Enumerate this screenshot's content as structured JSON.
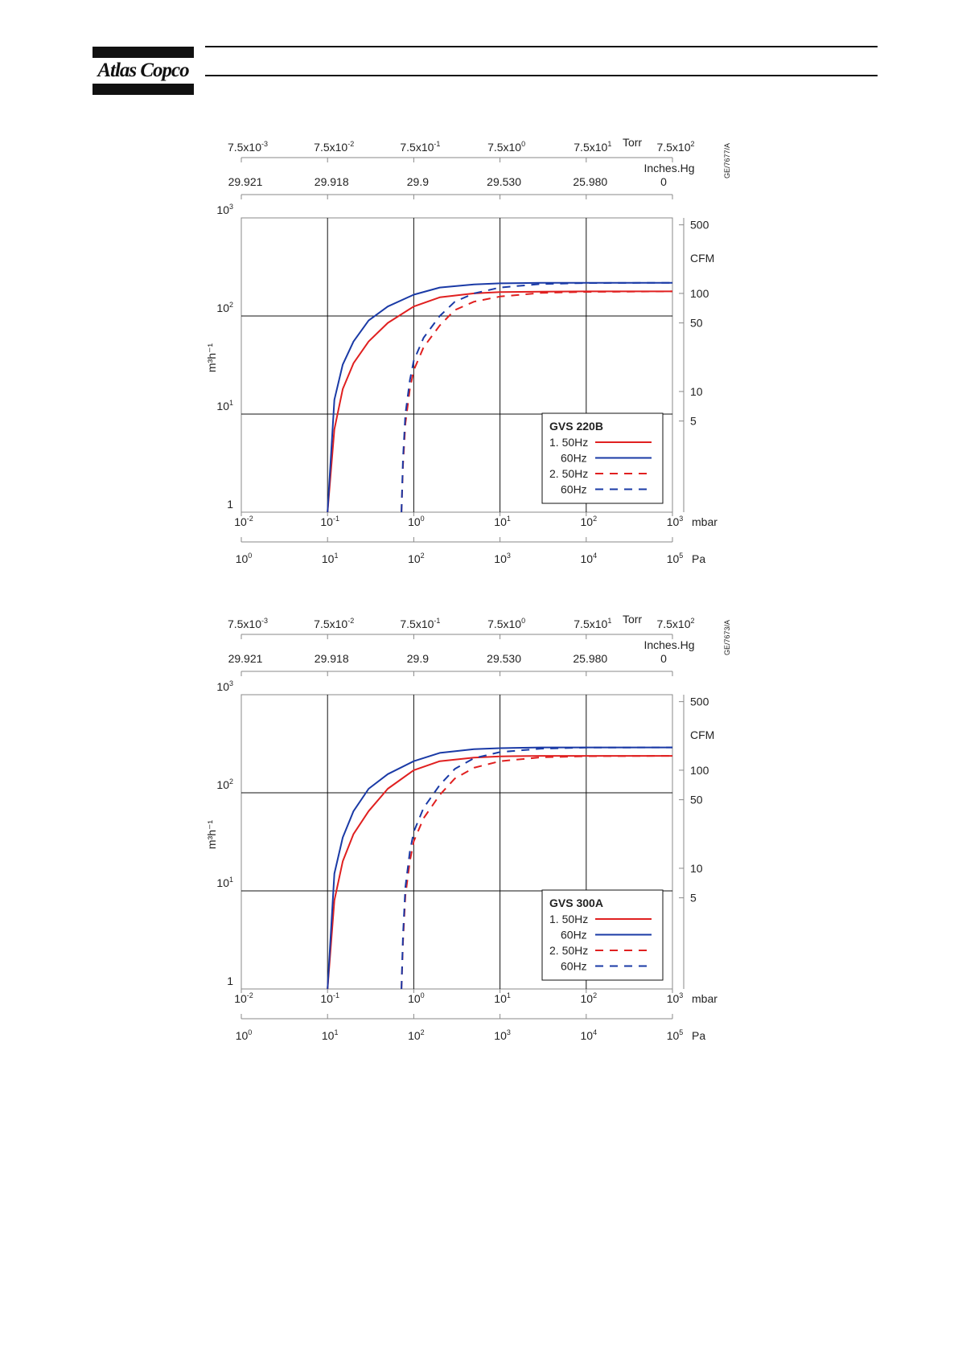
{
  "header": {
    "brand": "Atlas Copco"
  },
  "colors": {
    "line_50hz": "#e02020",
    "line_60hz": "#1a3aa6",
    "grid": "#111111",
    "frame": "#888888"
  },
  "chart_data": [
    {
      "type": "line",
      "legend_title": "GVS 220B",
      "drawing_code": "GE/7677/A",
      "ylabel": "m³h⁻¹",
      "xlabel": "mbar",
      "x_scale": "log",
      "y_scale": "log",
      "xlim": [
        0.01,
        1000
      ],
      "ylim": [
        1,
        1000
      ],
      "grid": true,
      "legend_position": "bottom-right",
      "y_ticks": [
        {
          "base": "1",
          "exp": ""
        },
        {
          "base": "10",
          "exp": "1"
        },
        {
          "base": "10",
          "exp": "2"
        },
        {
          "base": "10",
          "exp": "3"
        }
      ],
      "x_ticks": [
        {
          "base": "10",
          "exp": "-2"
        },
        {
          "base": "10",
          "exp": "-1"
        },
        {
          "base": "10",
          "exp": "0"
        },
        {
          "base": "10",
          "exp": "1"
        },
        {
          "base": "10",
          "exp": "2"
        },
        {
          "base": "10",
          "exp": "3"
        }
      ],
      "torr_unit": "Torr",
      "torr_ticks": [
        {
          "base": "7.5x10",
          "exp": "-3"
        },
        {
          "base": "7.5x10",
          "exp": "-2"
        },
        {
          "base": "7.5x10",
          "exp": "-1"
        },
        {
          "base": "7.5x10",
          "exp": "0"
        },
        {
          "base": "7.5x10",
          "exp": "1"
        },
        {
          "base": "7.5x10",
          "exp": "2"
        }
      ],
      "inhg_unit": "Inches.Hg",
      "inhg_ticks": [
        "29.921",
        "29.918",
        "29.9",
        "29.530",
        "25.980",
        "0"
      ],
      "pa_unit": "Pa",
      "pa_ticks": [
        {
          "base": "10",
          "exp": "0"
        },
        {
          "base": "10",
          "exp": "1"
        },
        {
          "base": "10",
          "exp": "2"
        },
        {
          "base": "10",
          "exp": "3"
        },
        {
          "base": "10",
          "exp": "4"
        },
        {
          "base": "10",
          "exp": "5"
        }
      ],
      "cfm_unit": "CFM",
      "cfm_ticks": [
        "500",
        "100",
        "50",
        "10",
        "5"
      ],
      "legend": {
        "row1_prefix": "1. 50Hz",
        "row2": "60Hz",
        "row3_prefix": "2. 50Hz",
        "row4": "60Hz"
      },
      "series": [
        {
          "name": "1. 50Hz",
          "color": "#e02020",
          "dash": false,
          "x": [
            0.1,
            0.12,
            0.15,
            0.2,
            0.3,
            0.5,
            1,
            2,
            5,
            10,
            30,
            100,
            1000
          ],
          "y": [
            1,
            7,
            18,
            33,
            55,
            85,
            125,
            155,
            170,
            175,
            177,
            178,
            178
          ]
        },
        {
          "name": "60Hz",
          "color": "#1a3aa6",
          "dash": false,
          "x": [
            0.1,
            0.12,
            0.15,
            0.2,
            0.3,
            0.5,
            1,
            2,
            5,
            10,
            30,
            100,
            1000
          ],
          "y": [
            1,
            14,
            32,
            55,
            90,
            125,
            165,
            195,
            210,
            215,
            218,
            218,
            218
          ]
        },
        {
          "name": "2. 50Hz",
          "color": "#e02020",
          "dash": true,
          "x": [
            0.72,
            0.75,
            0.8,
            0.9,
            1,
            1.3,
            2,
            3,
            5,
            10,
            30,
            100,
            1000
          ],
          "y": [
            1,
            3,
            8,
            18,
            28,
            48,
            80,
            115,
            140,
            158,
            172,
            176,
            178
          ]
        },
        {
          "name": "60Hz",
          "color": "#1a3aa6",
          "dash": true,
          "x": [
            0.72,
            0.75,
            0.8,
            0.9,
            1,
            1.3,
            2,
            3,
            5,
            10,
            30,
            100,
            1000
          ],
          "y": [
            1,
            3.5,
            10,
            22,
            35,
            60,
            100,
            140,
            170,
            195,
            212,
            217,
            218
          ]
        }
      ]
    },
    {
      "type": "line",
      "legend_title": "GVS 300A",
      "drawing_code": "GE/7673/A",
      "ylabel": "m³h⁻¹",
      "xlabel": "mbar",
      "x_scale": "log",
      "y_scale": "log",
      "xlim": [
        0.01,
        1000
      ],
      "ylim": [
        1,
        1000
      ],
      "grid": true,
      "legend_position": "bottom-right",
      "y_ticks": [
        {
          "base": "1",
          "exp": ""
        },
        {
          "base": "10",
          "exp": "1"
        },
        {
          "base": "10",
          "exp": "2"
        },
        {
          "base": "10",
          "exp": "3"
        }
      ],
      "x_ticks": [
        {
          "base": "10",
          "exp": "-2"
        },
        {
          "base": "10",
          "exp": "-1"
        },
        {
          "base": "10",
          "exp": "0"
        },
        {
          "base": "10",
          "exp": "1"
        },
        {
          "base": "10",
          "exp": "2"
        },
        {
          "base": "10",
          "exp": "3"
        }
      ],
      "torr_unit": "Torr",
      "torr_ticks": [
        {
          "base": "7.5x10",
          "exp": "-3"
        },
        {
          "base": "7.5x10",
          "exp": "-2"
        },
        {
          "base": "7.5x10",
          "exp": "-1"
        },
        {
          "base": "7.5x10",
          "exp": "0"
        },
        {
          "base": "7.5x10",
          "exp": "1"
        },
        {
          "base": "7.5x10",
          "exp": "2"
        }
      ],
      "inhg_unit": "Inches.Hg",
      "inhg_ticks": [
        "29.921",
        "29.918",
        "29.9",
        "29.530",
        "25.980",
        "0"
      ],
      "pa_unit": "Pa",
      "pa_ticks": [
        {
          "base": "10",
          "exp": "0"
        },
        {
          "base": "10",
          "exp": "1"
        },
        {
          "base": "10",
          "exp": "2"
        },
        {
          "base": "10",
          "exp": "3"
        },
        {
          "base": "10",
          "exp": "4"
        },
        {
          "base": "10",
          "exp": "5"
        }
      ],
      "cfm_unit": "CFM",
      "cfm_ticks": [
        "500",
        "100",
        "50",
        "10",
        "5"
      ],
      "legend": {
        "row1_prefix": "1. 50Hz",
        "row2": "60Hz",
        "row3_prefix": "2. 50Hz",
        "row4": "60Hz"
      },
      "series": [
        {
          "name": "1. 50Hz",
          "color": "#e02020",
          "dash": false,
          "x": [
            0.1,
            0.12,
            0.15,
            0.2,
            0.3,
            0.5,
            1,
            2,
            5,
            10,
            30,
            100,
            1000
          ],
          "y": [
            1,
            8,
            20,
            38,
            65,
            110,
            170,
            210,
            228,
            235,
            238,
            238,
            238
          ]
        },
        {
          "name": "60Hz",
          "color": "#1a3aa6",
          "dash": false,
          "x": [
            0.1,
            0.12,
            0.15,
            0.2,
            0.3,
            0.5,
            1,
            2,
            5,
            10,
            30,
            100,
            1000
          ],
          "y": [
            1,
            15,
            35,
            65,
            110,
            155,
            210,
            255,
            278,
            285,
            290,
            290,
            290
          ]
        },
        {
          "name": "2. 50Hz",
          "color": "#e02020",
          "dash": true,
          "x": [
            0.72,
            0.75,
            0.8,
            0.9,
            1,
            1.3,
            2,
            3,
            5,
            10,
            30,
            100,
            1000
          ],
          "y": [
            1,
            3,
            9,
            20,
            32,
            55,
            95,
            140,
            180,
            210,
            230,
            236,
            238
          ]
        },
        {
          "name": "60Hz",
          "color": "#1a3aa6",
          "dash": true,
          "x": [
            0.72,
            0.75,
            0.8,
            0.9,
            1,
            1.3,
            2,
            3,
            5,
            10,
            30,
            100,
            1000
          ],
          "y": [
            1,
            3.5,
            11,
            25,
            40,
            70,
            120,
            175,
            225,
            260,
            282,
            289,
            290
          ]
        }
      ]
    }
  ]
}
